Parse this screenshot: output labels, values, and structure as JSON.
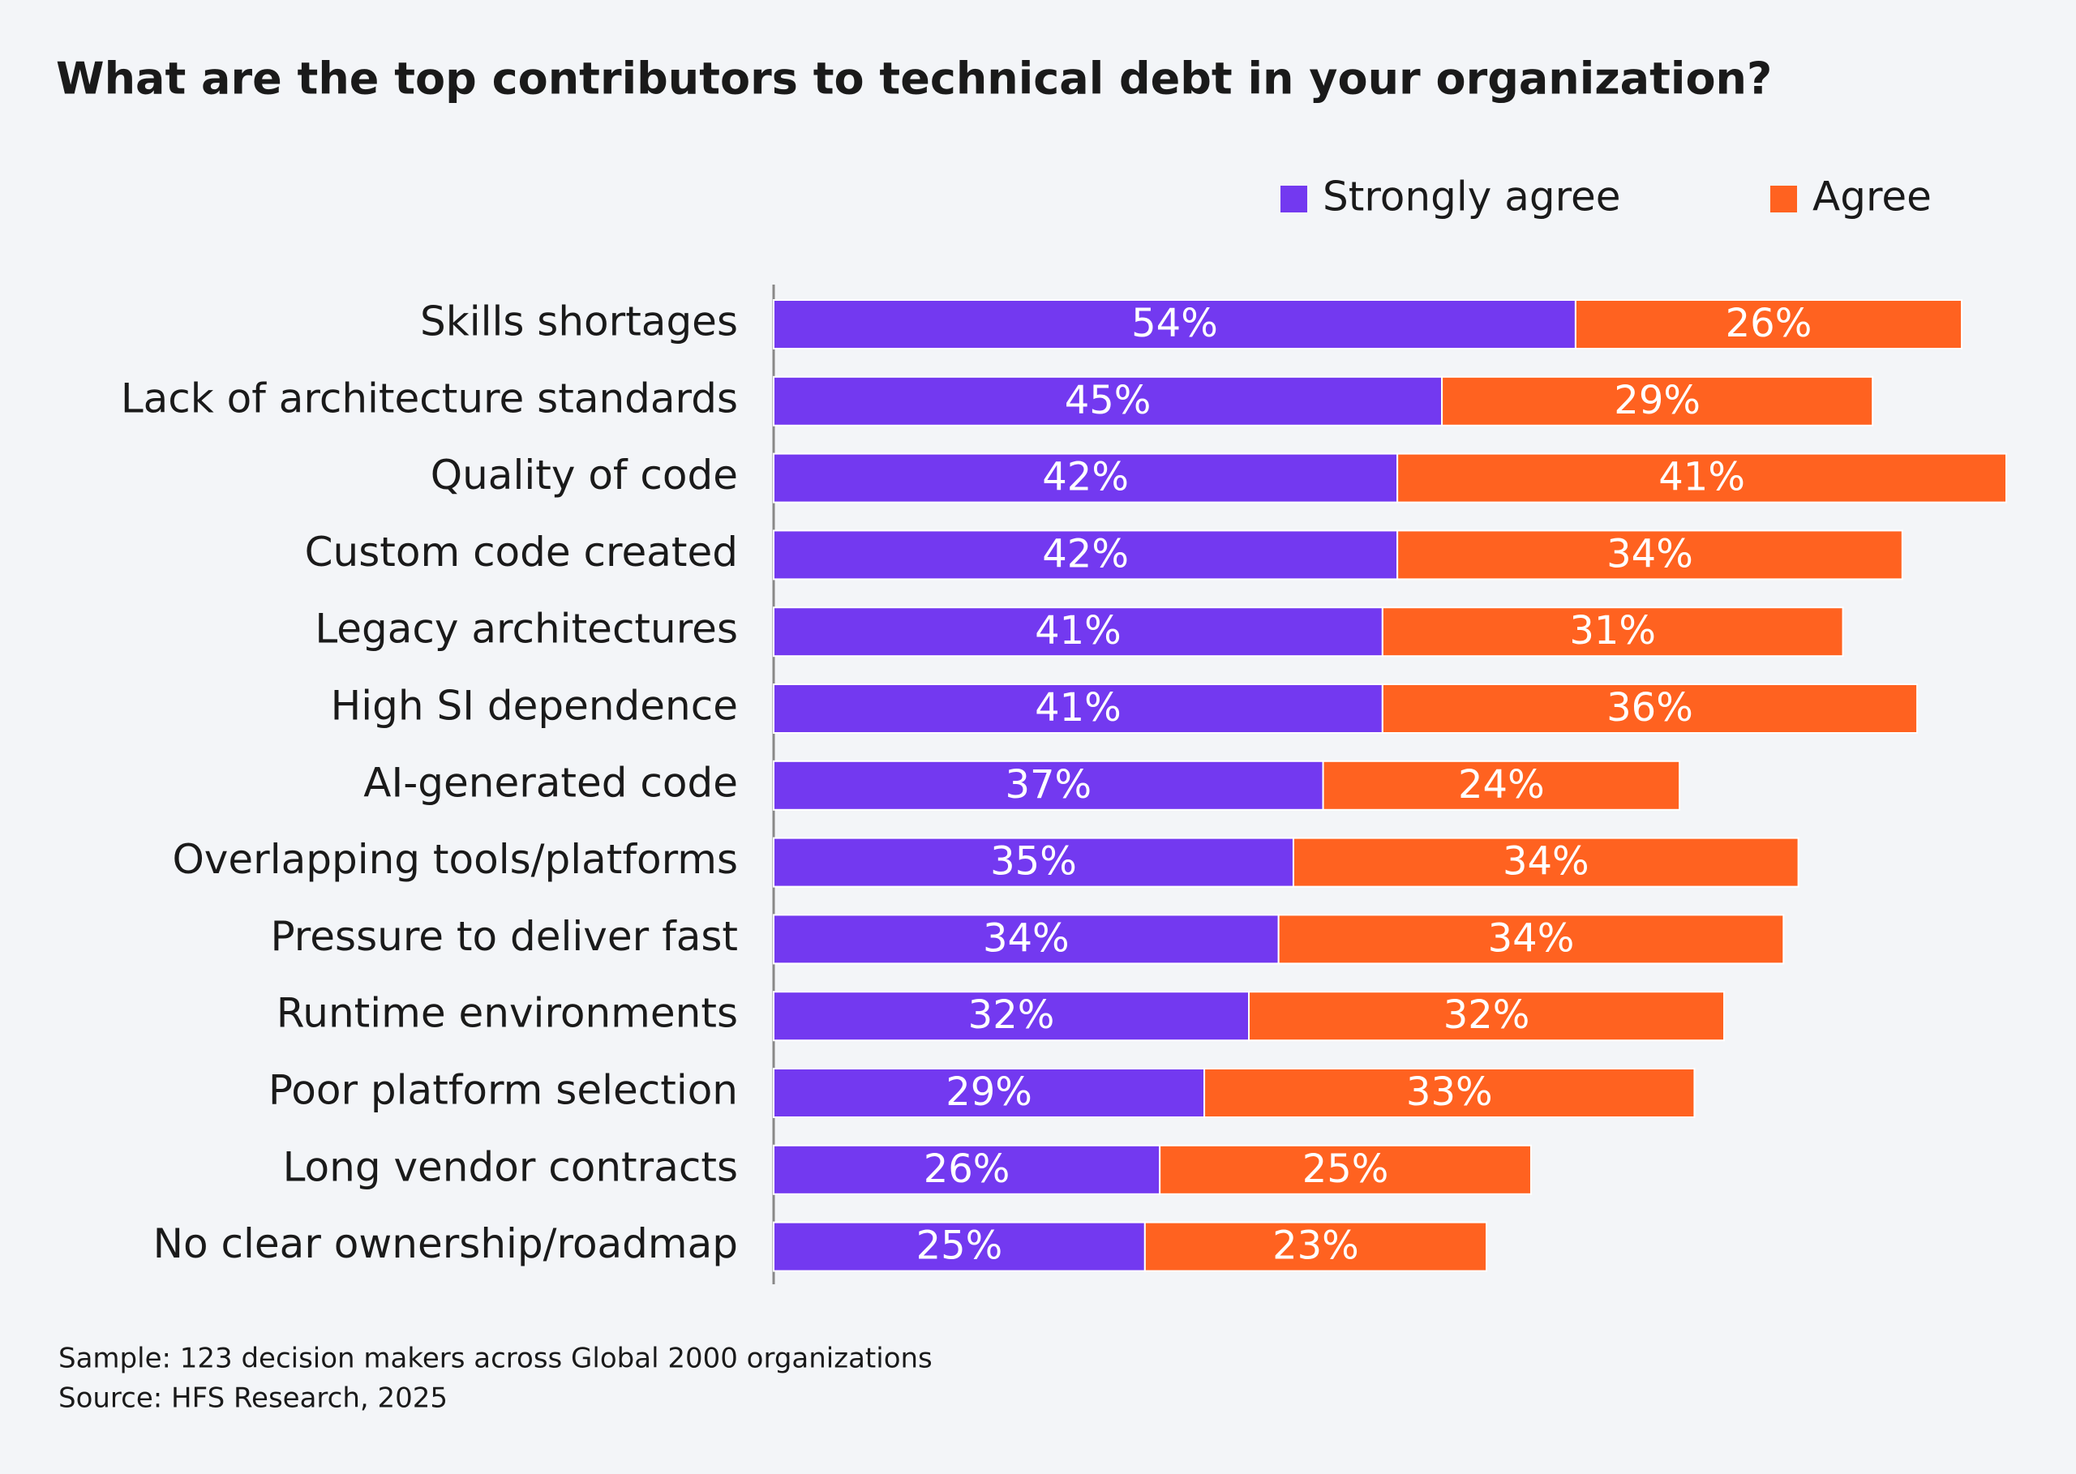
{
  "chart_data": {
    "type": "stacked-bar-horizontal",
    "title": "What are the top contributors to technical debt in your organization?",
    "categories": [
      "Skills shortages",
      "Lack of architecture standards",
      "Quality of code",
      "Custom code created",
      "Legacy architectures",
      "High SI dependence",
      "AI-generated code",
      "Overlapping tools/platforms",
      "Pressure to deliver fast",
      "Runtime environments",
      "Poor platform selection",
      "Long vendor contracts",
      "No clear ownership/roadmap"
    ],
    "series": [
      {
        "name": "Strongly agree",
        "color": "#7339f0",
        "values": [
          54,
          45,
          42,
          42,
          41,
          41,
          37,
          35,
          34,
          32,
          29,
          26,
          25
        ],
        "value_labels": [
          "54%",
          "45%",
          "42%",
          "42%",
          "41%",
          "41%",
          "37%",
          "35%",
          "34%",
          "32%",
          "29%",
          "26%",
          "25%"
        ]
      },
      {
        "name": "Agree",
        "color": "#ff6220",
        "values": [
          26,
          29,
          41,
          34,
          31,
          36,
          24,
          34,
          34,
          32,
          33,
          25,
          23
        ],
        "value_labels": [
          "26%",
          "29%",
          "41%",
          "34%",
          "31%",
          "36%",
          "24%",
          "34%",
          "34%",
          "32%",
          "33%",
          "25%",
          "23%"
        ]
      }
    ],
    "legend": "top-right",
    "footnotes": [
      "Sample: 123 decision makers across Global 2000 organizations",
      "Source: HFS Research, 2025"
    ]
  }
}
